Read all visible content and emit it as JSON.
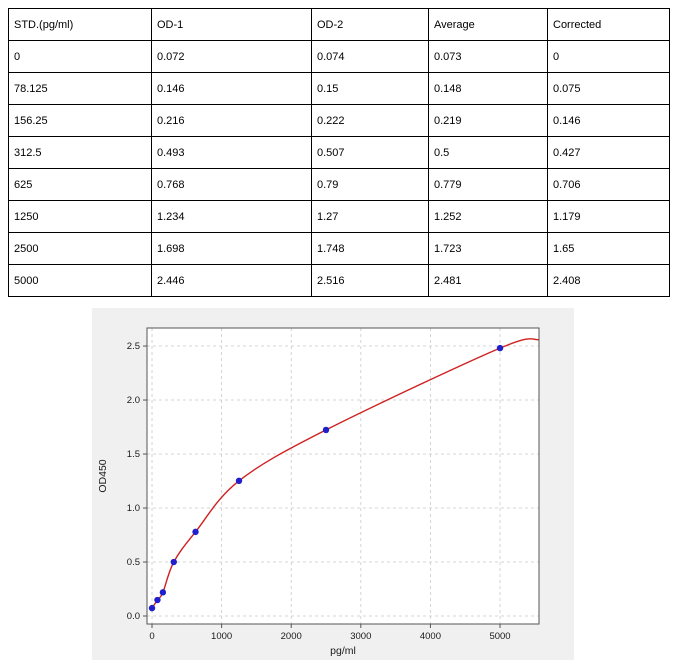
{
  "table": {
    "headers": [
      "STD.(pg/ml)",
      "OD-1",
      "OD-2",
      "Average",
      "Corrected"
    ],
    "rows": [
      [
        "0",
        "0.072",
        "0.074",
        "0.073",
        "0"
      ],
      [
        "78.125",
        "0.146",
        "0.15",
        "0.148",
        "0.075"
      ],
      [
        "156.25",
        "0.216",
        "0.222",
        "0.219",
        "0.146"
      ],
      [
        "312.5",
        "0.493",
        "0.507",
        "0.5",
        "0.427"
      ],
      [
        "625",
        "0.768",
        "0.79",
        "0.779",
        "0.706"
      ],
      [
        "1250",
        "1.234",
        "1.27",
        "1.252",
        "1.179"
      ],
      [
        "2500",
        "1.698",
        "1.748",
        "1.723",
        "1.65"
      ],
      [
        "5000",
        "2.446",
        "2.516",
        "2.481",
        "2.408"
      ]
    ]
  },
  "chart_data": {
    "type": "scatter",
    "title": "",
    "xlabel": "pg/ml",
    "ylabel": "OD450",
    "points": {
      "x": [
        0,
        78.125,
        156.25,
        312.5,
        625,
        1250,
        2500,
        5000
      ],
      "y": [
        0.073,
        0.148,
        0.219,
        0.5,
        0.779,
        1.252,
        1.723,
        2.481
      ]
    },
    "fit": {
      "type": "smooth-curve-through-points",
      "extend_to_x": 5560,
      "extend_to_y": 2.56
    },
    "x_ticks": [
      0,
      1000,
      2000,
      3000,
      4000,
      5000
    ],
    "y_ticks": [
      0.0,
      0.5,
      1.0,
      1.5,
      2.0,
      2.5
    ],
    "xlim": [
      -72,
      5560
    ],
    "ylim": [
      -0.074,
      2.667
    ],
    "grid": true,
    "legend": "none",
    "colors": {
      "point": "#1f1fcc",
      "curve": "#cf2020",
      "grid": "#c9c9c9",
      "frame": "#555555",
      "plot_bg": "#ffffff",
      "figure_bg": "#f0f0f0"
    }
  }
}
